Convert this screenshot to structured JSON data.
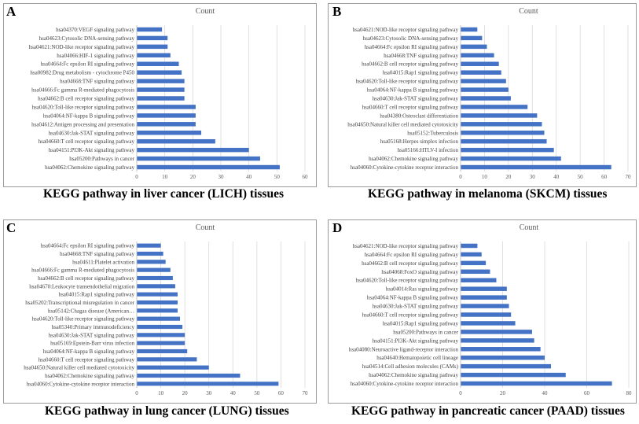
{
  "chart_data": [
    {
      "type": "bar",
      "orientation": "horizontal",
      "panel": "A",
      "title": "Count",
      "caption": "KEGG pathway in liver cancer (LICH) tissues",
      "xlim": [
        0,
        60
      ],
      "ticks": [
        0,
        10,
        20,
        30,
        40,
        50,
        60
      ],
      "grid": true,
      "color": "#4472C4",
      "categories": [
        "hsa04370:VEGF signaling pathway",
        "hsa04623:Cytosolic DNA-sensing pathway",
        "hsa04621:NOD-like receptor signaling pathway",
        "hsa04066:HIF-1 signaling pathway",
        "hsa04664:Fc epsilon RI signaling pathway",
        "hsa00982:Drug metabolism - cytochrome P450",
        "hsa04668:TNF signaling pathway",
        "hsa04666:Fc gamma R-mediated phagocytosis",
        "hsa04662:B cell receptor signaling pathway",
        "hsa04620:Toll-like receptor signaling pathway",
        "hsa04064:NF-kappa B signaling pathway",
        "hsa04612:Antigen processing and presentation",
        "hsa04630:Jak-STAT signaling pathway",
        "hsa04660:T cell receptor signaling pathway",
        "hsa04151:PI3K-Akt signaling pathway",
        "hsa05200:Pathways in cancer",
        "hsa04062:Chemokine signaling pathway"
      ],
      "values": [
        9,
        11,
        11,
        12,
        15,
        16,
        17,
        17,
        17,
        21,
        21,
        21,
        23,
        28,
        40,
        44,
        51
      ]
    },
    {
      "type": "bar",
      "orientation": "horizontal",
      "panel": "B",
      "title": "Count",
      "caption": "KEGG pathway in melanoma (SKCM) tissues",
      "xlim": [
        0,
        70
      ],
      "ticks": [
        0,
        10,
        20,
        30,
        40,
        50,
        60,
        70
      ],
      "grid": true,
      "color": "#4472C4",
      "categories": [
        "hsa04621:NOD-like receptor signaling pathway",
        "hsa04623:Cytosolic DNA-sensing pathway",
        "hsa04664:Fc epsilon RI signaling pathway",
        "hsa04668:TNF signaling pathway",
        "hsa04662:B cell receptor signaling pathway",
        "hsa04015:Rap1 signaling pathway",
        "hsa04620:Toll-like receptor signaling pathway",
        "hsa04064:NF-kappa B signaling pathway",
        "hsa04630:Jak-STAT signaling pathway",
        "hsa04660:T cell receptor signaling pathway",
        "hsa04380:Osteoclast differentiation",
        "hsa04650:Natural killer cell mediated cytotoxicity",
        "hsa05152:Tuberculosis",
        "hsa05168:Herpes simplex infection",
        "hsa05166:HTLV-I infection",
        "hsa04062:Chemokine signaling pathway",
        "hsa04060:Cytokine-cytokine receptor interaction"
      ],
      "values": [
        7,
        9,
        11,
        14,
        16,
        17,
        19,
        20,
        21,
        28,
        32,
        34,
        35,
        36,
        39,
        42,
        63
      ]
    },
    {
      "type": "bar",
      "orientation": "horizontal",
      "panel": "C",
      "title": "Count",
      "caption": "KEGG pathway in lung cancer (LUNG) tissues",
      "xlim": [
        0,
        70
      ],
      "ticks": [
        0,
        10,
        20,
        30,
        40,
        50,
        60,
        70
      ],
      "grid": true,
      "color": "#4472C4",
      "categories": [
        "hsa04664:Fc epsilon RI signaling pathway",
        "hsa04668:TNF signaling pathway",
        "hsa04611:Platelet activation",
        "hsa04666:Fc gamma R-mediated phagocytosis",
        "hsa04662:B cell receptor signaling pathway",
        "hsa04670:Leukocyte transendothelial migration",
        "hsa04015:Rap1 signaling pathway",
        "hsa05202:Transcriptional misregulation in cancer",
        "hsa05142:Chagas disease (American…",
        "hsa04620:Toll-like receptor signaling pathway",
        "hsa05340:Primary immunodeficiency",
        "hsa04630:Jak-STAT signaling pathway",
        "hsa05169:Epstein-Barr virus infection",
        "hsa04064:NF-kappa B signaling pathway",
        "hsa04660:T cell receptor signaling pathway",
        "hsa04650:Natural killer cell mediated cytotoxicity",
        "hsa04062:Chemokine signaling pathway",
        "hsa04060:Cytokine-cytokine receptor interaction"
      ],
      "values": [
        10,
        11,
        12,
        14,
        15,
        16,
        17,
        17,
        17,
        18,
        19,
        20,
        20,
        21,
        25,
        30,
        43,
        59
      ]
    },
    {
      "type": "bar",
      "orientation": "horizontal",
      "panel": "D",
      "title": "Count",
      "caption": "KEGG pathway in pancreatic cancer (PAAD) tissues",
      "xlim": [
        0,
        80
      ],
      "ticks": [
        0,
        20,
        40,
        60,
        80
      ],
      "grid": true,
      "color": "#4472C4",
      "categories": [
        "hsa04621:NOD-like receptor signaling pathway",
        "hsa04664:Fc epsilon RI signaling pathway",
        "hsa04662:B cell receptor signaling pathway",
        "hsa04068:FoxO signaling pathway",
        "hsa04620:Toll-like receptor signaling pathway",
        "hsa04014:Ras signaling pathway",
        "hsa04064:NF-kappa B signaling pathway",
        "hsa04630:Jak-STAT signaling pathway",
        "hsa04660:T cell receptor signaling pathway",
        "hsa04015:Rap1 signaling pathway",
        "hsa05200:Pathways in cancer",
        "hsa04151:PI3K-Akt signaling pathway",
        "hsa04080:Neuroactive ligand-receptor interaction",
        "hsa04640:Hematopoietic cell lineage",
        "hsa04514:Cell adhesion molecules (CAMs)",
        "hsa04062:Chemokine signaling pathway",
        "hsa04060:Cytokine-cytokine receptor interaction"
      ],
      "values": [
        8,
        10,
        12,
        14,
        17,
        22,
        22,
        23,
        24,
        26,
        34,
        35,
        38,
        40,
        43,
        50,
        72
      ]
    }
  ]
}
